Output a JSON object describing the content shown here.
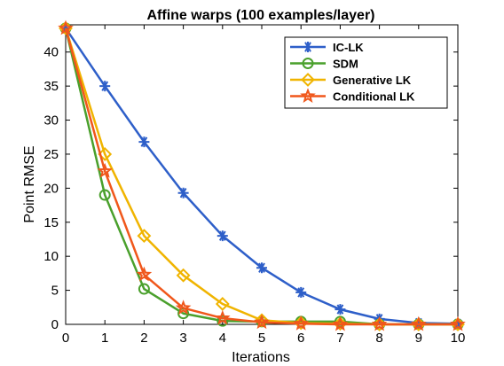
{
  "chart_data": {
    "type": "line",
    "title": "Affine warps (100 examples/layer)",
    "xlabel": "Iterations",
    "ylabel": "Point RMSE",
    "xlim": [
      0,
      10
    ],
    "ylim": [
      0,
      44
    ],
    "xticks": [
      0,
      1,
      2,
      3,
      4,
      5,
      6,
      7,
      8,
      9,
      10
    ],
    "yticks": [
      0,
      5,
      10,
      15,
      20,
      25,
      30,
      35,
      40
    ],
    "grid": false,
    "legend_position": "top-right",
    "x": [
      0,
      1,
      2,
      3,
      4,
      5,
      6,
      7,
      8,
      9,
      10
    ],
    "series": [
      {
        "name": "IC-LK",
        "color": "#2e5fc9",
        "marker": "asterisk",
        "values": [
          43.5,
          35.0,
          26.8,
          19.3,
          13.0,
          8.3,
          4.7,
          2.2,
          0.8,
          0.2,
          0.1
        ]
      },
      {
        "name": "SDM",
        "color": "#4aa02c",
        "marker": "circle",
        "values": [
          43.5,
          19.0,
          5.2,
          1.6,
          0.5,
          0.4,
          0.4,
          0.4,
          0.0,
          0.0,
          0.0
        ]
      },
      {
        "name": "Generative LK",
        "color": "#f0b400",
        "marker": "diamond",
        "values": [
          43.5,
          25.0,
          13.0,
          7.2,
          3.0,
          0.6,
          0.2,
          0.1,
          0.0,
          0.0,
          0.0
        ]
      },
      {
        "name": "Conditional LK",
        "color": "#f0571b",
        "marker": "star",
        "values": [
          43.5,
          22.5,
          7.3,
          2.4,
          0.9,
          0.3,
          0.1,
          0.0,
          0.0,
          0.0,
          0.0
        ]
      }
    ]
  }
}
